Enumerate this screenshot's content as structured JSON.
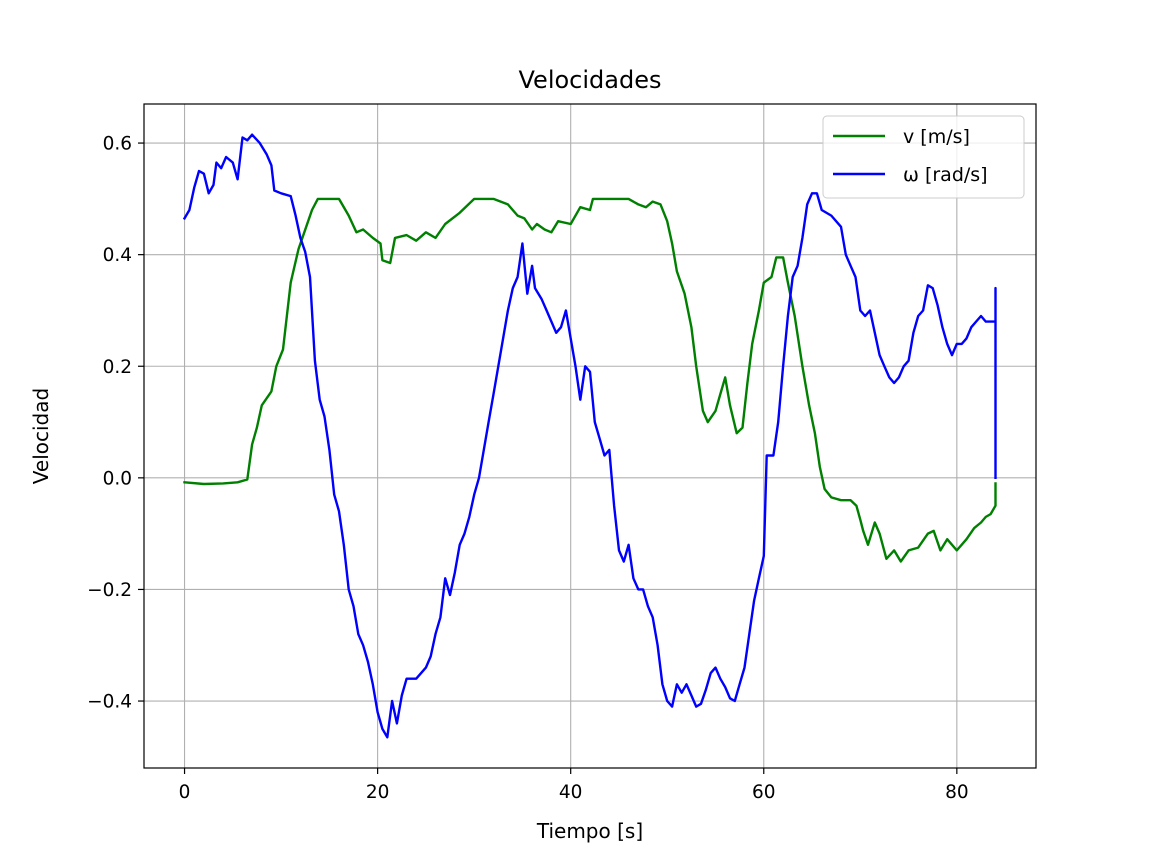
{
  "chart_data": {
    "type": "line",
    "title": "Velocidades",
    "xlabel": "Tiempo [s]",
    "ylabel": "Velocidad",
    "xlim": [
      -4.2,
      88.2
    ],
    "ylim": [
      -0.52,
      0.67
    ],
    "x_ticks": [
      0,
      20,
      40,
      60,
      80
    ],
    "x_tick_labels": [
      "0",
      "20",
      "40",
      "60",
      "80"
    ],
    "y_ticks": [
      -0.4,
      -0.2,
      0.0,
      0.2,
      0.4,
      0.6
    ],
    "y_tick_labels": [
      "−0.4",
      "−0.2",
      "0.0",
      "0.2",
      "0.4",
      "0.6"
    ],
    "grid": true,
    "legend_position": "top-right",
    "series": [
      {
        "name": "v [m/s]",
        "color": "#008000",
        "points": [
          [
            0,
            -0.008
          ],
          [
            2,
            -0.011
          ],
          [
            4,
            -0.01
          ],
          [
            5.5,
            -0.008
          ],
          [
            6.5,
            -0.003
          ],
          [
            7.0,
            0.06
          ],
          [
            7.5,
            0.09
          ],
          [
            8.0,
            0.13
          ],
          [
            9.0,
            0.155
          ],
          [
            9.5,
            0.2
          ],
          [
            10.2,
            0.23
          ],
          [
            11.0,
            0.35
          ],
          [
            11.8,
            0.41
          ],
          [
            12.6,
            0.45
          ],
          [
            13.2,
            0.48
          ],
          [
            13.8,
            0.5
          ],
          [
            16.0,
            0.5
          ],
          [
            17.0,
            0.47
          ],
          [
            17.8,
            0.44
          ],
          [
            18.5,
            0.445
          ],
          [
            19.5,
            0.43
          ],
          [
            20.3,
            0.42
          ],
          [
            20.5,
            0.39
          ],
          [
            21.3,
            0.385
          ],
          [
            21.8,
            0.43
          ],
          [
            23.0,
            0.435
          ],
          [
            24.0,
            0.425
          ],
          [
            25.0,
            0.44
          ],
          [
            26.0,
            0.43
          ],
          [
            27.0,
            0.455
          ],
          [
            28.5,
            0.475
          ],
          [
            30.0,
            0.5
          ],
          [
            32.0,
            0.5
          ],
          [
            33.5,
            0.49
          ],
          [
            34.5,
            0.47
          ],
          [
            35.2,
            0.465
          ],
          [
            36.0,
            0.445
          ],
          [
            36.5,
            0.455
          ],
          [
            37.3,
            0.445
          ],
          [
            38.0,
            0.44
          ],
          [
            38.7,
            0.46
          ],
          [
            40.0,
            0.455
          ],
          [
            41.0,
            0.485
          ],
          [
            42.0,
            0.48
          ],
          [
            42.3,
            0.5
          ],
          [
            46.0,
            0.5
          ],
          [
            47.0,
            0.49
          ],
          [
            47.8,
            0.485
          ],
          [
            48.5,
            0.495
          ],
          [
            49.3,
            0.49
          ],
          [
            50.0,
            0.46
          ],
          [
            50.5,
            0.42
          ],
          [
            51.0,
            0.37
          ],
          [
            51.8,
            0.33
          ],
          [
            52.5,
            0.27
          ],
          [
            53.0,
            0.2
          ],
          [
            53.7,
            0.12
          ],
          [
            54.2,
            0.1
          ],
          [
            55.0,
            0.12
          ],
          [
            55.5,
            0.15
          ],
          [
            56.0,
            0.18
          ],
          [
            56.5,
            0.13
          ],
          [
            57.2,
            0.08
          ],
          [
            57.8,
            0.09
          ],
          [
            58.3,
            0.17
          ],
          [
            58.8,
            0.24
          ],
          [
            59.5,
            0.3
          ],
          [
            60.0,
            0.35
          ],
          [
            60.8,
            0.36
          ],
          [
            61.3,
            0.395
          ],
          [
            62.0,
            0.395
          ],
          [
            62.5,
            0.35
          ],
          [
            63.2,
            0.29
          ],
          [
            64.0,
            0.2
          ],
          [
            64.7,
            0.13
          ],
          [
            65.3,
            0.08
          ],
          [
            65.8,
            0.02
          ],
          [
            66.3,
            -0.02
          ],
          [
            67.0,
            -0.035
          ],
          [
            68.0,
            -0.04
          ],
          [
            69.0,
            -0.04
          ],
          [
            69.6,
            -0.05
          ],
          [
            70.0,
            -0.075
          ],
          [
            70.3,
            -0.095
          ],
          [
            70.8,
            -0.12
          ],
          [
            71.5,
            -0.08
          ],
          [
            72.0,
            -0.1
          ],
          [
            72.7,
            -0.145
          ],
          [
            73.5,
            -0.13
          ],
          [
            74.2,
            -0.15
          ],
          [
            75.0,
            -0.13
          ],
          [
            76.0,
            -0.125
          ],
          [
            77.0,
            -0.1
          ],
          [
            77.6,
            -0.095
          ],
          [
            78.3,
            -0.13
          ],
          [
            79.0,
            -0.11
          ],
          [
            80.0,
            -0.13
          ],
          [
            81.0,
            -0.11
          ],
          [
            81.8,
            -0.09
          ],
          [
            82.5,
            -0.08
          ],
          [
            83.0,
            -0.07
          ],
          [
            83.5,
            -0.065
          ],
          [
            84.0,
            -0.05
          ],
          [
            84.0,
            -0.01
          ]
        ]
      },
      {
        "name": "ω [rad/s]",
        "color": "#0000ff",
        "points": [
          [
            0,
            0.465
          ],
          [
            0.5,
            0.48
          ],
          [
            1.0,
            0.52
          ],
          [
            1.5,
            0.55
          ],
          [
            2.0,
            0.545
          ],
          [
            2.5,
            0.51
          ],
          [
            3.0,
            0.525
          ],
          [
            3.3,
            0.565
          ],
          [
            3.8,
            0.555
          ],
          [
            4.3,
            0.575
          ],
          [
            5.0,
            0.565
          ],
          [
            5.5,
            0.535
          ],
          [
            6.0,
            0.61
          ],
          [
            6.5,
            0.605
          ],
          [
            7.0,
            0.615
          ],
          [
            7.8,
            0.6
          ],
          [
            8.5,
            0.58
          ],
          [
            9.0,
            0.56
          ],
          [
            9.3,
            0.515
          ],
          [
            10.0,
            0.51
          ],
          [
            11.0,
            0.505
          ],
          [
            11.5,
            0.47
          ],
          [
            12.0,
            0.43
          ],
          [
            12.5,
            0.405
          ],
          [
            13.0,
            0.36
          ],
          [
            13.5,
            0.21
          ],
          [
            14.0,
            0.14
          ],
          [
            14.5,
            0.11
          ],
          [
            15.0,
            0.05
          ],
          [
            15.5,
            -0.03
          ],
          [
            16.0,
            -0.06
          ],
          [
            16.5,
            -0.12
          ],
          [
            17.0,
            -0.2
          ],
          [
            17.5,
            -0.23
          ],
          [
            18.0,
            -0.28
          ],
          [
            18.5,
            -0.3
          ],
          [
            19.0,
            -0.33
          ],
          [
            19.5,
            -0.37
          ],
          [
            20.0,
            -0.42
          ],
          [
            20.5,
            -0.45
          ],
          [
            21.0,
            -0.465
          ],
          [
            21.5,
            -0.4
          ],
          [
            22.0,
            -0.44
          ],
          [
            22.5,
            -0.39
          ],
          [
            23.0,
            -0.36
          ],
          [
            24.0,
            -0.36
          ],
          [
            25.0,
            -0.34
          ],
          [
            25.5,
            -0.32
          ],
          [
            26.0,
            -0.28
          ],
          [
            26.5,
            -0.25
          ],
          [
            27.0,
            -0.18
          ],
          [
            27.5,
            -0.21
          ],
          [
            28.0,
            -0.17
          ],
          [
            28.5,
            -0.12
          ],
          [
            29.0,
            -0.1
          ],
          [
            29.5,
            -0.07
          ],
          [
            30.0,
            -0.03
          ],
          [
            30.5,
            0.0
          ],
          [
            31.0,
            0.05
          ],
          [
            31.5,
            0.1
          ],
          [
            32.0,
            0.15
          ],
          [
            32.5,
            0.2
          ],
          [
            33.0,
            0.25
          ],
          [
            33.5,
            0.3
          ],
          [
            34.0,
            0.34
          ],
          [
            34.5,
            0.36
          ],
          [
            35.0,
            0.42
          ],
          [
            35.5,
            0.33
          ],
          [
            36.0,
            0.38
          ],
          [
            36.3,
            0.34
          ],
          [
            37.0,
            0.32
          ],
          [
            37.5,
            0.3
          ],
          [
            38.0,
            0.28
          ],
          [
            38.5,
            0.26
          ],
          [
            39.0,
            0.27
          ],
          [
            39.5,
            0.3
          ],
          [
            40.0,
            0.25
          ],
          [
            40.5,
            0.2
          ],
          [
            41.0,
            0.14
          ],
          [
            41.5,
            0.2
          ],
          [
            42.0,
            0.19
          ],
          [
            42.5,
            0.1
          ],
          [
            43.0,
            0.07
          ],
          [
            43.5,
            0.04
          ],
          [
            44.0,
            0.05
          ],
          [
            44.5,
            -0.05
          ],
          [
            45.0,
            -0.13
          ],
          [
            45.5,
            -0.15
          ],
          [
            46.0,
            -0.12
          ],
          [
            46.5,
            -0.18
          ],
          [
            47.0,
            -0.2
          ],
          [
            47.5,
            -0.2
          ],
          [
            48.0,
            -0.23
          ],
          [
            48.5,
            -0.25
          ],
          [
            49.0,
            -0.3
          ],
          [
            49.5,
            -0.37
          ],
          [
            50.0,
            -0.4
          ],
          [
            50.5,
            -0.41
          ],
          [
            51.0,
            -0.37
          ],
          [
            51.5,
            -0.385
          ],
          [
            52.0,
            -0.37
          ],
          [
            52.5,
            -0.39
          ],
          [
            53.0,
            -0.41
          ],
          [
            53.5,
            -0.405
          ],
          [
            54.0,
            -0.38
          ],
          [
            54.5,
            -0.35
          ],
          [
            55.0,
            -0.34
          ],
          [
            55.5,
            -0.36
          ],
          [
            56.0,
            -0.375
          ],
          [
            56.5,
            -0.395
          ],
          [
            57.0,
            -0.4
          ],
          [
            57.5,
            -0.37
          ],
          [
            58.0,
            -0.34
          ],
          [
            58.5,
            -0.28
          ],
          [
            59.0,
            -0.22
          ],
          [
            59.5,
            -0.18
          ],
          [
            60.0,
            -0.14
          ],
          [
            60.3,
            0.04
          ],
          [
            61.0,
            0.04
          ],
          [
            61.5,
            0.1
          ],
          [
            62.0,
            0.2
          ],
          [
            62.5,
            0.29
          ],
          [
            63.0,
            0.36
          ],
          [
            63.5,
            0.38
          ],
          [
            64.0,
            0.43
          ],
          [
            64.5,
            0.49
          ],
          [
            65.0,
            0.51
          ],
          [
            65.5,
            0.51
          ],
          [
            66.0,
            0.48
          ],
          [
            67.0,
            0.47
          ],
          [
            68.0,
            0.45
          ],
          [
            68.5,
            0.4
          ],
          [
            69.0,
            0.38
          ],
          [
            69.5,
            0.36
          ],
          [
            70.0,
            0.3
          ],
          [
            70.5,
            0.29
          ],
          [
            71.0,
            0.3
          ],
          [
            71.5,
            0.26
          ],
          [
            72.0,
            0.22
          ],
          [
            72.5,
            0.2
          ],
          [
            73.0,
            0.18
          ],
          [
            73.5,
            0.17
          ],
          [
            74.0,
            0.18
          ],
          [
            74.5,
            0.2
          ],
          [
            75.0,
            0.21
          ],
          [
            75.5,
            0.26
          ],
          [
            76.0,
            0.29
          ],
          [
            76.5,
            0.3
          ],
          [
            77.0,
            0.345
          ],
          [
            77.5,
            0.34
          ],
          [
            78.0,
            0.31
          ],
          [
            78.5,
            0.27
          ],
          [
            79.0,
            0.24
          ],
          [
            79.5,
            0.22
          ],
          [
            80.0,
            0.24
          ],
          [
            80.5,
            0.24
          ],
          [
            81.0,
            0.25
          ],
          [
            81.5,
            0.27
          ],
          [
            82.0,
            0.28
          ],
          [
            82.5,
            0.29
          ],
          [
            83.0,
            0.28
          ],
          [
            83.5,
            0.28
          ],
          [
            84.0,
            0.28
          ],
          [
            84.0,
            0.34
          ],
          [
            84.0,
            0.0
          ]
        ]
      }
    ]
  }
}
